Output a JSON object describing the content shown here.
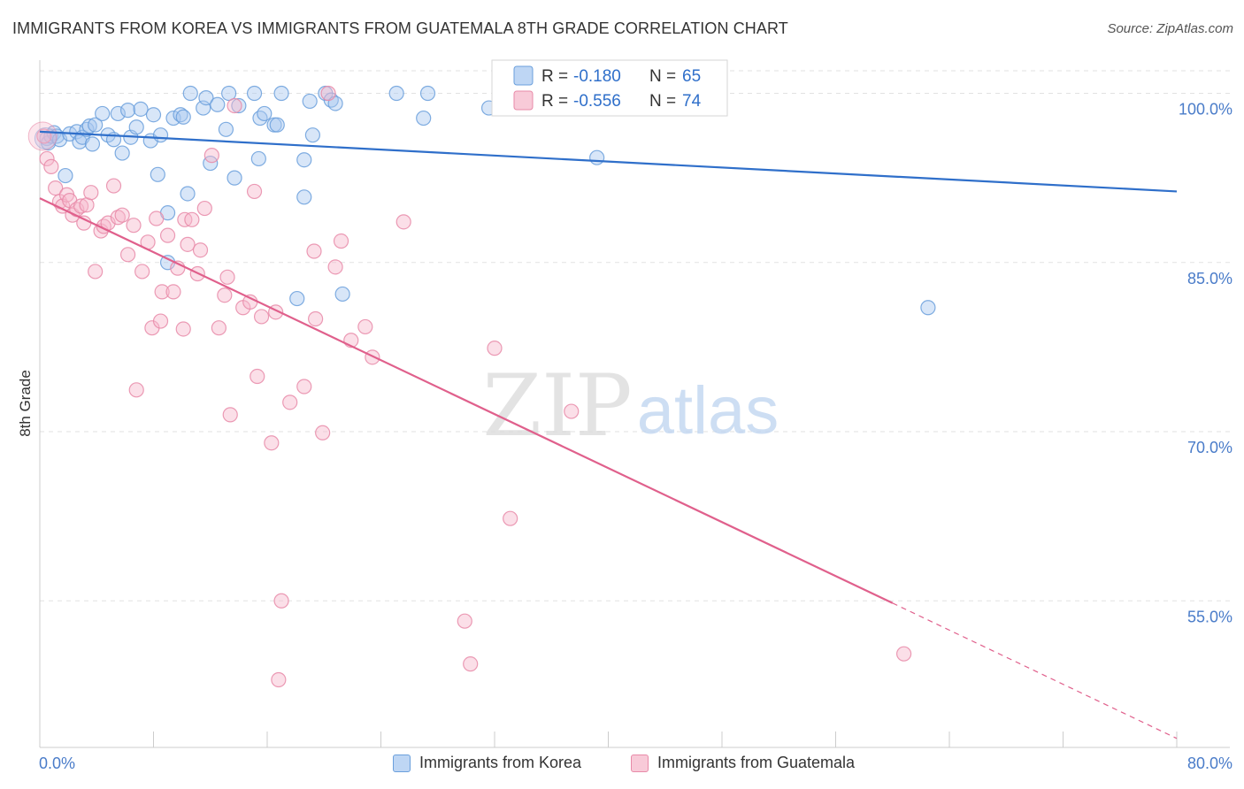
{
  "title": "IMMIGRANTS FROM KOREA VS IMMIGRANTS FROM GUATEMALA 8TH GRADE CORRELATION CHART",
  "source": "Source: ZipAtlas.com",
  "watermark": {
    "zip": "ZIP",
    "atlas": "atlas"
  },
  "colors": {
    "korea_fill": "#a8c8f0",
    "korea_stroke": "#6a9fdc",
    "korea_line": "#2f6fca",
    "guatemala_fill": "#f6b8cb",
    "guatemala_stroke": "#e88aa8",
    "guatemala_line": "#e0608c",
    "tick_label": "#4a7cc9",
    "grid": "#e2e2e2"
  },
  "legend": {
    "rows": [
      {
        "r_label": "R =",
        "r_value": "-0.180",
        "n_label": "N =",
        "n_value": "65"
      },
      {
        "r_label": "R =",
        "r_value": "-0.556",
        "n_label": "N =",
        "n_value": "74"
      }
    ]
  },
  "chart_data": {
    "type": "scatter",
    "title": "IMMIGRANTS FROM KOREA VS IMMIGRANTS FROM GUATEMALA 8TH GRADE CORRELATION CHART",
    "xlabel": "",
    "ylabel": "8th Grade",
    "xlim": [
      0,
      80
    ],
    "ylim": [
      42,
      102
    ],
    "x_tick_labels": [
      "0.0%",
      "80.0%"
    ],
    "y_ticks": [
      55,
      70,
      85,
      100
    ],
    "y_tick_labels": [
      "55.0%",
      "70.0%",
      "85.0%",
      "100.0%"
    ],
    "grid": true,
    "legend_position": "top-center",
    "series": [
      {
        "name": "Immigrants from Korea",
        "r": -0.18,
        "n": 65,
        "trend": {
          "x0": 0,
          "y0": 96.6,
          "x1": 80,
          "y1": 91.3
        },
        "points": [
          [
            0.5,
            96.0
          ],
          [
            0.6,
            95.6
          ],
          [
            0.8,
            96.2
          ],
          [
            1.0,
            96.5
          ],
          [
            1.2,
            96.2
          ],
          [
            1.4,
            95.9
          ],
          [
            1.8,
            92.7
          ],
          [
            2.1,
            96.4
          ],
          [
            2.6,
            96.6
          ],
          [
            2.8,
            95.7
          ],
          [
            3.0,
            96.1
          ],
          [
            3.3,
            96.8
          ],
          [
            3.5,
            97.1
          ],
          [
            3.7,
            95.5
          ],
          [
            3.9,
            97.2
          ],
          [
            4.4,
            98.2
          ],
          [
            4.8,
            96.3
          ],
          [
            5.2,
            95.9
          ],
          [
            5.5,
            98.2
          ],
          [
            5.8,
            94.7
          ],
          [
            6.2,
            98.5
          ],
          [
            6.4,
            96.1
          ],
          [
            6.8,
            97.0
          ],
          [
            7.1,
            98.6
          ],
          [
            7.8,
            95.8
          ],
          [
            8.0,
            98.1
          ],
          [
            8.3,
            92.8
          ],
          [
            8.5,
            96.3
          ],
          [
            9.0,
            89.4
          ],
          [
            9.0,
            85.0
          ],
          [
            9.4,
            97.8
          ],
          [
            9.9,
            98.1
          ],
          [
            10.1,
            97.9
          ],
          [
            10.4,
            91.1
          ],
          [
            10.6,
            100.0
          ],
          [
            11.5,
            98.7
          ],
          [
            11.7,
            99.6
          ],
          [
            12.0,
            93.8
          ],
          [
            12.5,
            99.0
          ],
          [
            13.1,
            96.8
          ],
          [
            13.3,
            100.0
          ],
          [
            13.7,
            92.5
          ],
          [
            14.0,
            98.9
          ],
          [
            15.1,
            100.0
          ],
          [
            15.4,
            94.2
          ],
          [
            15.5,
            97.8
          ],
          [
            15.8,
            98.2
          ],
          [
            16.5,
            97.2
          ],
          [
            16.7,
            97.2
          ],
          [
            17.0,
            100.0
          ],
          [
            18.1,
            81.8
          ],
          [
            18.6,
            94.1
          ],
          [
            18.6,
            90.8
          ],
          [
            19.0,
            99.3
          ],
          [
            19.2,
            96.3
          ],
          [
            20.1,
            100.0
          ],
          [
            20.5,
            99.4
          ],
          [
            20.8,
            99.1
          ],
          [
            21.3,
            82.2
          ],
          [
            25.1,
            100.0
          ],
          [
            27.0,
            97.8
          ],
          [
            27.3,
            100.0
          ],
          [
            31.6,
            98.7
          ],
          [
            39.2,
            94.3
          ],
          [
            62.5,
            81.0
          ]
        ]
      },
      {
        "name": "Immigrants from Guatemala",
        "r": -0.556,
        "n": 74,
        "trend": {
          "x0": 0,
          "y0": 90.7,
          "x1": 60,
          "y1": 54.8
        },
        "trend_dashed": {
          "x0": 60,
          "y0": 54.8,
          "x1": 80,
          "y1": 42.8
        },
        "points": [
          [
            0.3,
            96.2
          ],
          [
            0.5,
            94.2
          ],
          [
            0.8,
            93.5
          ],
          [
            1.1,
            91.6
          ],
          [
            1.4,
            90.4
          ],
          [
            1.6,
            90.0
          ],
          [
            1.9,
            91.0
          ],
          [
            2.1,
            90.5
          ],
          [
            2.3,
            89.2
          ],
          [
            2.6,
            89.7
          ],
          [
            2.9,
            90.0
          ],
          [
            3.1,
            88.5
          ],
          [
            3.3,
            90.1
          ],
          [
            3.6,
            91.2
          ],
          [
            3.9,
            84.2
          ],
          [
            4.3,
            87.8
          ],
          [
            4.5,
            88.2
          ],
          [
            4.8,
            88.5
          ],
          [
            5.2,
            91.8
          ],
          [
            5.5,
            89.0
          ],
          [
            5.8,
            89.2
          ],
          [
            6.2,
            85.7
          ],
          [
            6.6,
            88.3
          ],
          [
            6.8,
            73.7
          ],
          [
            7.2,
            84.2
          ],
          [
            7.6,
            86.8
          ],
          [
            7.9,
            79.2
          ],
          [
            8.2,
            88.9
          ],
          [
            8.5,
            79.8
          ],
          [
            8.6,
            82.4
          ],
          [
            9.0,
            87.4
          ],
          [
            9.4,
            82.4
          ],
          [
            9.7,
            84.5
          ],
          [
            10.1,
            79.1
          ],
          [
            10.2,
            88.8
          ],
          [
            10.4,
            86.6
          ],
          [
            10.7,
            88.8
          ],
          [
            11.1,
            84.0
          ],
          [
            11.3,
            86.1
          ],
          [
            11.6,
            89.8
          ],
          [
            12.1,
            94.5
          ],
          [
            12.6,
            79.2
          ],
          [
            13.0,
            82.1
          ],
          [
            13.2,
            83.7
          ],
          [
            13.4,
            71.5
          ],
          [
            13.7,
            98.9
          ],
          [
            14.3,
            81.0
          ],
          [
            14.8,
            81.5
          ],
          [
            15.1,
            91.3
          ],
          [
            15.3,
            74.9
          ],
          [
            15.6,
            80.2
          ],
          [
            16.3,
            69.0
          ],
          [
            16.6,
            80.6
          ],
          [
            16.8,
            48.0
          ],
          [
            17.0,
            55.0
          ],
          [
            17.6,
            72.6
          ],
          [
            18.6,
            74.0
          ],
          [
            19.3,
            86.0
          ],
          [
            19.4,
            80.0
          ],
          [
            19.9,
            69.9
          ],
          [
            20.3,
            100.0
          ],
          [
            20.8,
            84.6
          ],
          [
            21.2,
            86.9
          ],
          [
            21.9,
            78.1
          ],
          [
            22.9,
            79.3
          ],
          [
            23.4,
            76.6
          ],
          [
            25.6,
            88.6
          ],
          [
            29.9,
            53.2
          ],
          [
            30.3,
            49.4
          ],
          [
            32.0,
            77.4
          ],
          [
            33.1,
            62.3
          ],
          [
            36.2,
            100.0
          ],
          [
            37.4,
            71.8
          ],
          [
            60.8,
            50.3
          ]
        ]
      }
    ]
  }
}
